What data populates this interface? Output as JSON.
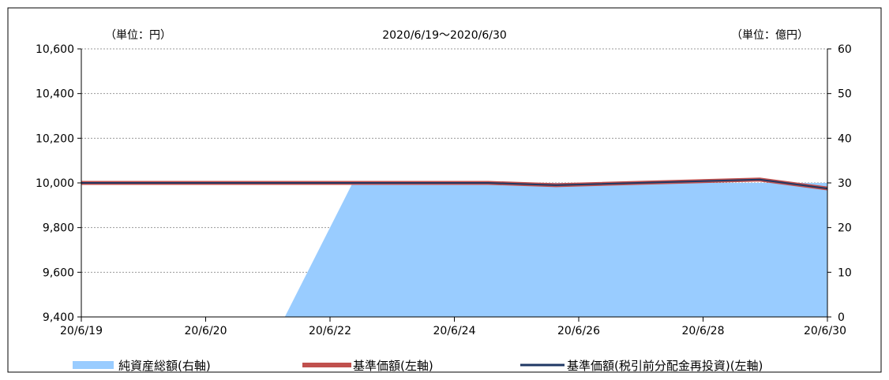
{
  "chart_data": {
    "type": "line",
    "title": "2020/6/19～2020/6/30",
    "left_unit_label": "（単位：円）",
    "right_unit_label": "（単位：億円）",
    "x_labels": [
      "20/6/19",
      "20/6/20",
      "20/6/22",
      "20/6/24",
      "20/6/26",
      "20/6/28",
      "20/6/30"
    ],
    "x": [
      "2020-06-19",
      "2020-06-22",
      "2020-06-23",
      "2020-06-24",
      "2020-06-25",
      "2020-06-26",
      "2020-06-29",
      "2020-06-30"
    ],
    "y_left": {
      "ylim": [
        9400,
        10600
      ],
      "ticks": [
        "9,400",
        "9,600",
        "9,800",
        "10,000",
        "10,200",
        "10,400",
        "10,600"
      ]
    },
    "y_right": {
      "ylim": [
        0,
        60
      ],
      "ticks": [
        "0",
        "10",
        "20",
        "30",
        "40",
        "50",
        "60"
      ]
    },
    "series": [
      {
        "name": "純資産総額(右軸)",
        "type": "area",
        "axis": "right",
        "color": "#99ccff",
        "values": [
          0,
          0,
          30,
          30,
          30,
          30,
          30,
          30
        ]
      },
      {
        "name": "基準価額(左軸)",
        "type": "line",
        "axis": "left",
        "color": "#c0504d",
        "values": [
          10000,
          10000,
          10000,
          10000,
          10000,
          9990,
          10015,
          9975
        ]
      },
      {
        "name": "基準価額(税引前分配金再投資)(左軸)",
        "type": "line",
        "axis": "left",
        "color": "#1f3864",
        "values": [
          10000,
          10000,
          10000,
          10000,
          10000,
          9990,
          10015,
          9975
        ]
      }
    ],
    "grid": true,
    "legend_position": "bottom"
  }
}
